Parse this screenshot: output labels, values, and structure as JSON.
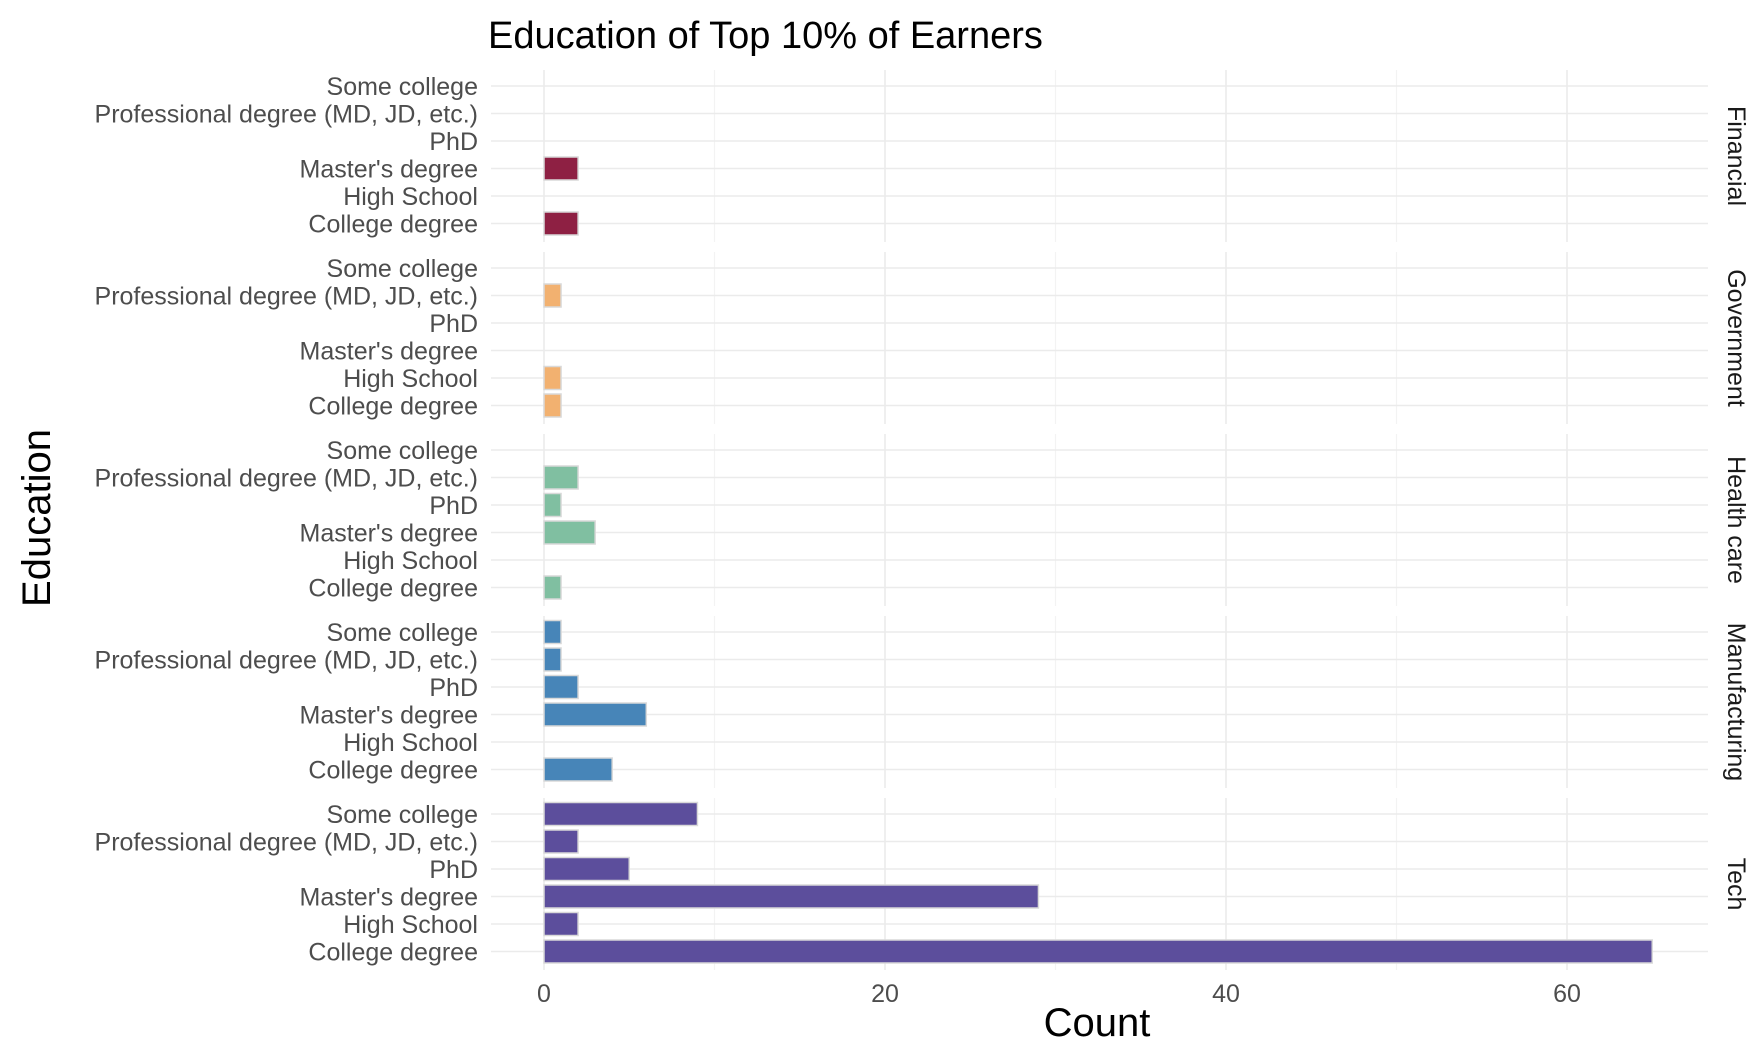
{
  "chart_data": {
    "type": "bar",
    "orientation": "horizontal",
    "title": "Education of Top 10% of Earners",
    "xlabel": "Count",
    "ylabel": "Education",
    "xlim": [
      0,
      68
    ],
    "xticks": [
      0,
      20,
      40,
      60
    ],
    "grid": true,
    "legend": "none",
    "categories": [
      "Some college",
      "Professional degree (MD, JD, etc.)",
      "PhD",
      "Master's degree",
      "High School",
      "College degree"
    ],
    "facets": [
      {
        "name": "Financial",
        "color": "#8e2043",
        "values": [
          0,
          0,
          0,
          2,
          0,
          2
        ]
      },
      {
        "name": "Government",
        "color": "#f2b170",
        "values": [
          0,
          1,
          0,
          0,
          1,
          1
        ]
      },
      {
        "name": "Health care",
        "color": "#80bfa1",
        "values": [
          0,
          2,
          1,
          3,
          0,
          1
        ]
      },
      {
        "name": "Manufacturing",
        "color": "#4785b8",
        "values": [
          1,
          1,
          2,
          6,
          0,
          4
        ]
      },
      {
        "name": "Tech",
        "color": "#5c4e9c",
        "values": [
          9,
          2,
          5,
          29,
          2,
          65
        ]
      }
    ]
  }
}
